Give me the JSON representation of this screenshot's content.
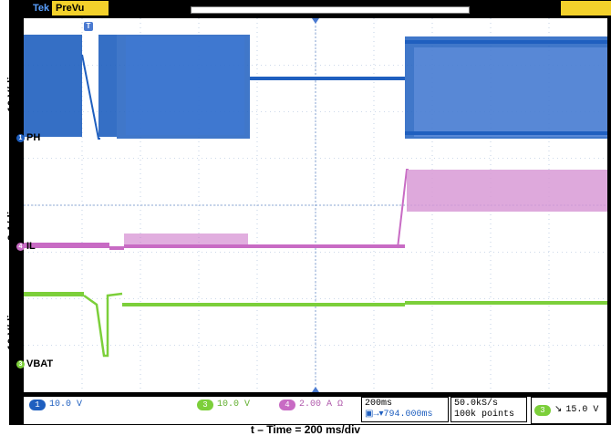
{
  "header": {
    "brand": "Tek",
    "mode": "PreVu",
    "trigger_marker": "T"
  },
  "axes": {
    "ch1_scale_label": "10 V/div",
    "ch2_scale_label": "2 A/div",
    "ch3_scale_label": "10 V/div"
  },
  "channels": [
    {
      "id": "1",
      "name": "PH",
      "color": "#1f5fbf"
    },
    {
      "id": "4",
      "name": "IL",
      "color": "#c86bc4"
    },
    {
      "id": "3",
      "name": "VBAT",
      "color": "#7ccf3a"
    }
  ],
  "footer": {
    "ch1": {
      "badge": "1",
      "value": "10.0 V"
    },
    "ch3": {
      "badge": "3",
      "value": "10.0 V"
    },
    "ch4": {
      "badge": "4",
      "value": "2.00 A Ω"
    },
    "timebase": "200ms",
    "position": "794.000ms",
    "sample_rate": "50.0kS/s",
    "record_length": "100k points",
    "trigger_badge": "3",
    "trigger_level": "15.0 V"
  },
  "caption": "t – Time = 200 ms/div",
  "colors": {
    "ch1": "#1f5fbf",
    "ch3": "#7ccf3a",
    "ch4": "#c86bc4",
    "accent": "#f3d12b"
  }
}
